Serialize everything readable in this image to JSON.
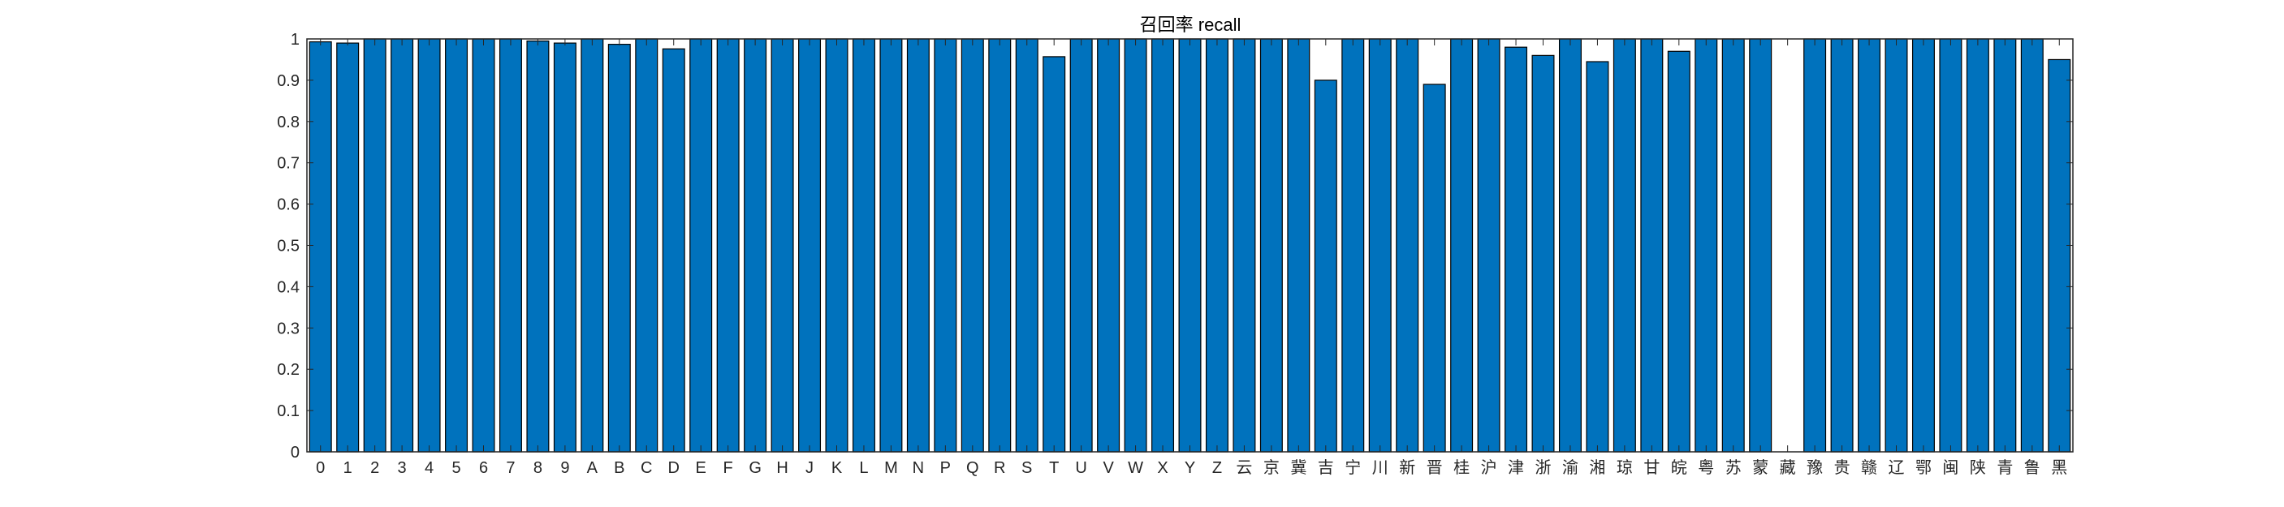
{
  "chart_data": {
    "type": "bar",
    "title": "召回率 recall",
    "xlabel": "",
    "ylabel": "",
    "ylim": [
      0,
      1
    ],
    "yticks": [
      0,
      0.1,
      0.2,
      0.3,
      0.4,
      0.5,
      0.6,
      0.7,
      0.8,
      0.9,
      1
    ],
    "ytick_labels": [
      "0",
      "0.1",
      "0.2",
      "0.3",
      "0.4",
      "0.5",
      "0.6",
      "0.7",
      "0.8",
      "0.9",
      "1"
    ],
    "grid": false,
    "legend": "none",
    "bar_color": "#0072BD",
    "edge_color": "#000000",
    "categories": [
      "0",
      "1",
      "2",
      "3",
      "4",
      "5",
      "6",
      "7",
      "8",
      "9",
      "A",
      "B",
      "C",
      "D",
      "E",
      "F",
      "G",
      "H",
      "J",
      "K",
      "L",
      "M",
      "N",
      "P",
      "Q",
      "R",
      "S",
      "T",
      "U",
      "V",
      "W",
      "X",
      "Y",
      "Z",
      "云",
      "京",
      "冀",
      "吉",
      "宁",
      "川",
      "新",
      "晋",
      "桂",
      "沪",
      "津",
      "浙",
      "渝",
      "湘",
      "琼",
      "甘",
      "皖",
      "粤",
      "苏",
      "蒙",
      "藏",
      "豫",
      "贵",
      "赣",
      "辽",
      "鄂",
      "闽",
      "陕",
      "青",
      "鲁",
      "黑"
    ],
    "values": [
      0.993,
      0.99,
      1,
      1,
      1,
      1,
      1,
      1,
      0.995,
      0.99,
      1,
      0.987,
      1,
      0.976,
      1,
      1,
      1,
      1,
      1,
      1,
      1,
      1,
      1,
      1,
      1,
      1,
      1,
      0.957,
      1,
      1,
      1,
      1,
      1,
      1,
      1,
      1,
      1,
      0.9,
      1,
      1,
      1,
      0.89,
      1,
      1,
      0.98,
      0.96,
      1,
      0.945,
      1,
      1,
      0.97,
      1,
      1,
      1,
      0,
      1,
      1,
      1,
      1,
      1,
      1,
      1,
      1,
      1,
      0.95
    ]
  }
}
